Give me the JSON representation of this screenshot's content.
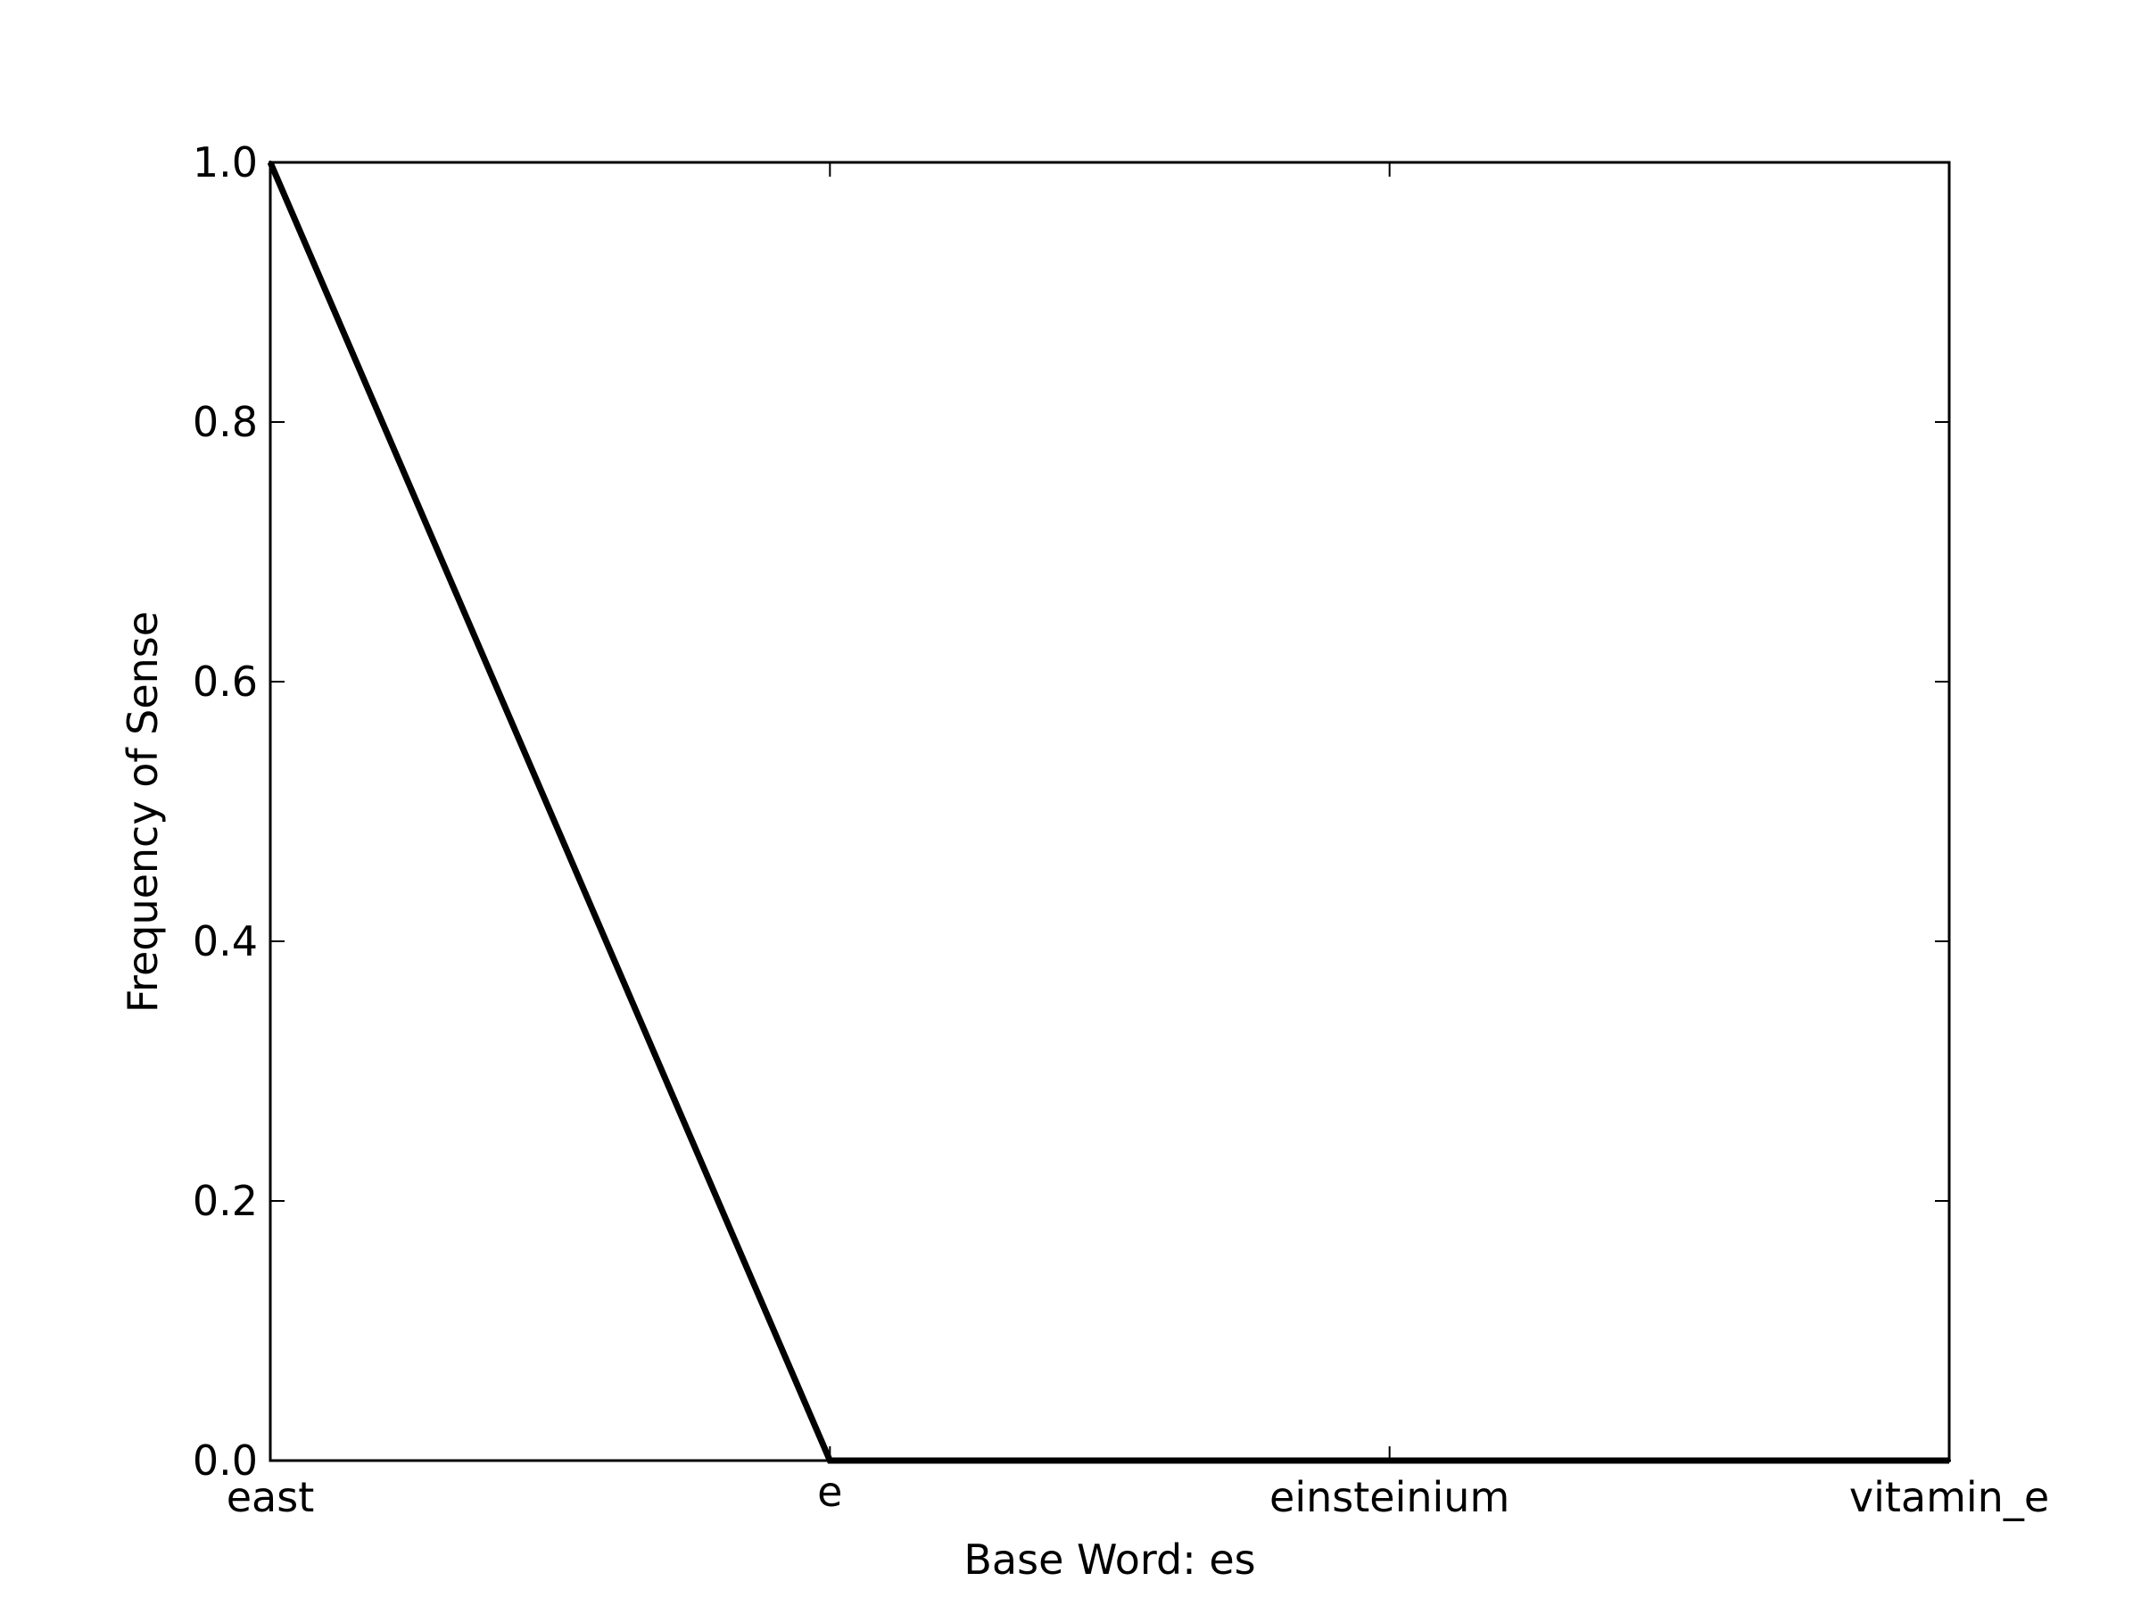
{
  "chart_data": {
    "type": "line",
    "title": "",
    "xlabel": "Base Word: es",
    "ylabel": "Frequency of Sense",
    "categories": [
      "east",
      "e",
      "einsteinium",
      "vitamin_e"
    ],
    "series": [
      {
        "values": [
          1.0,
          0.0,
          0.0,
          0.0
        ],
        "color": "#000000"
      }
    ],
    "ylim": [
      0.0,
      1.0
    ],
    "yticks": [
      "0.0",
      "0.2",
      "0.4",
      "0.6",
      "0.8",
      "1.0"
    ],
    "grid": false,
    "legend": "none"
  }
}
